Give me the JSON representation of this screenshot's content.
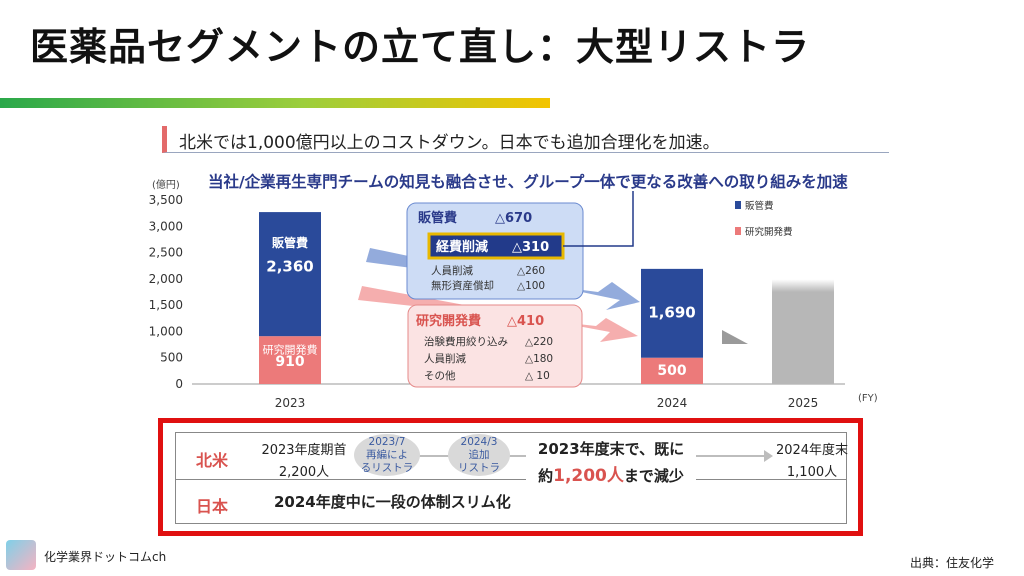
{
  "title": "医薬品セグメントの立て直し：大型リストラ",
  "subtitle": "北米では1,000億円以上のコストダウン。日本でも追加合理化を加速。",
  "banner": "当社/企業再生専門チームの知見も融合させ、グループ一体で更なる改善への取り組みを加速",
  "chart_data": {
    "type": "bar",
    "stacked": true,
    "unit_label": "(億円)",
    "x_unit": "(FY)",
    "categories": [
      "2023",
      "2024",
      "2025"
    ],
    "yticks": [
      "0",
      "500",
      "1,000",
      "1,500",
      "2,000",
      "2,500",
      "3,000",
      "3,500"
    ],
    "ylim": [
      0,
      3500
    ],
    "series": [
      {
        "name": "研究開発費",
        "color": "#ec7a7a",
        "values": [
          910,
          500,
          null
        ]
      },
      {
        "name": "販管費",
        "color": "#2a4a9a",
        "values": [
          2360,
          1690,
          null
        ]
      }
    ],
    "forecast_2025_total": 1990,
    "forecast_color": "#b7b7b7",
    "bar_labels": {
      "sga_2023_name": "販管費",
      "sga_2023_value": "2,360",
      "rd_2023_name": "研究開発費",
      "rd_2023_value": "910",
      "sga_2024_value": "1,690",
      "rd_2024_value": "500"
    },
    "legend": [
      "販管費",
      "研究開発費"
    ],
    "sga_box": {
      "title": "販管費",
      "title_value": "△670",
      "highlight_label": "経費削減",
      "highlight_value": "△310",
      "items": [
        {
          "label": "人員削減",
          "value": "△260"
        },
        {
          "label": "無形資産償却",
          "value": "△100"
        }
      ]
    },
    "rd_box": {
      "title": "研究開発費",
      "title_value": "△410",
      "items": [
        {
          "label": "治験費用絞り込み",
          "value": "△220"
        },
        {
          "label": "人員削減",
          "value": "△180"
        },
        {
          "label": "その他",
          "value": "△ 10"
        }
      ]
    }
  },
  "table": {
    "na_label": "北米",
    "jp_label": "日本",
    "na_start_line1": "2023年度期首",
    "na_start_line2": "2,200人",
    "oval1": "2023/7\n再編によ\nるリストラ",
    "oval2": "2024/3\n追加\nリストラ",
    "na_mid_line1": "2023年度末で、既に",
    "na_mid_pre": "約",
    "na_mid_highlight": "1,200人",
    "na_mid_post": "まで減少",
    "na_end_line1": "2024年度末",
    "na_end_line2": "1,100人",
    "jp_text": "2024年度中に一段の体制スリム化"
  },
  "footer": {
    "left": "化学業界ドットコムch",
    "right": "出典：住友化学"
  }
}
